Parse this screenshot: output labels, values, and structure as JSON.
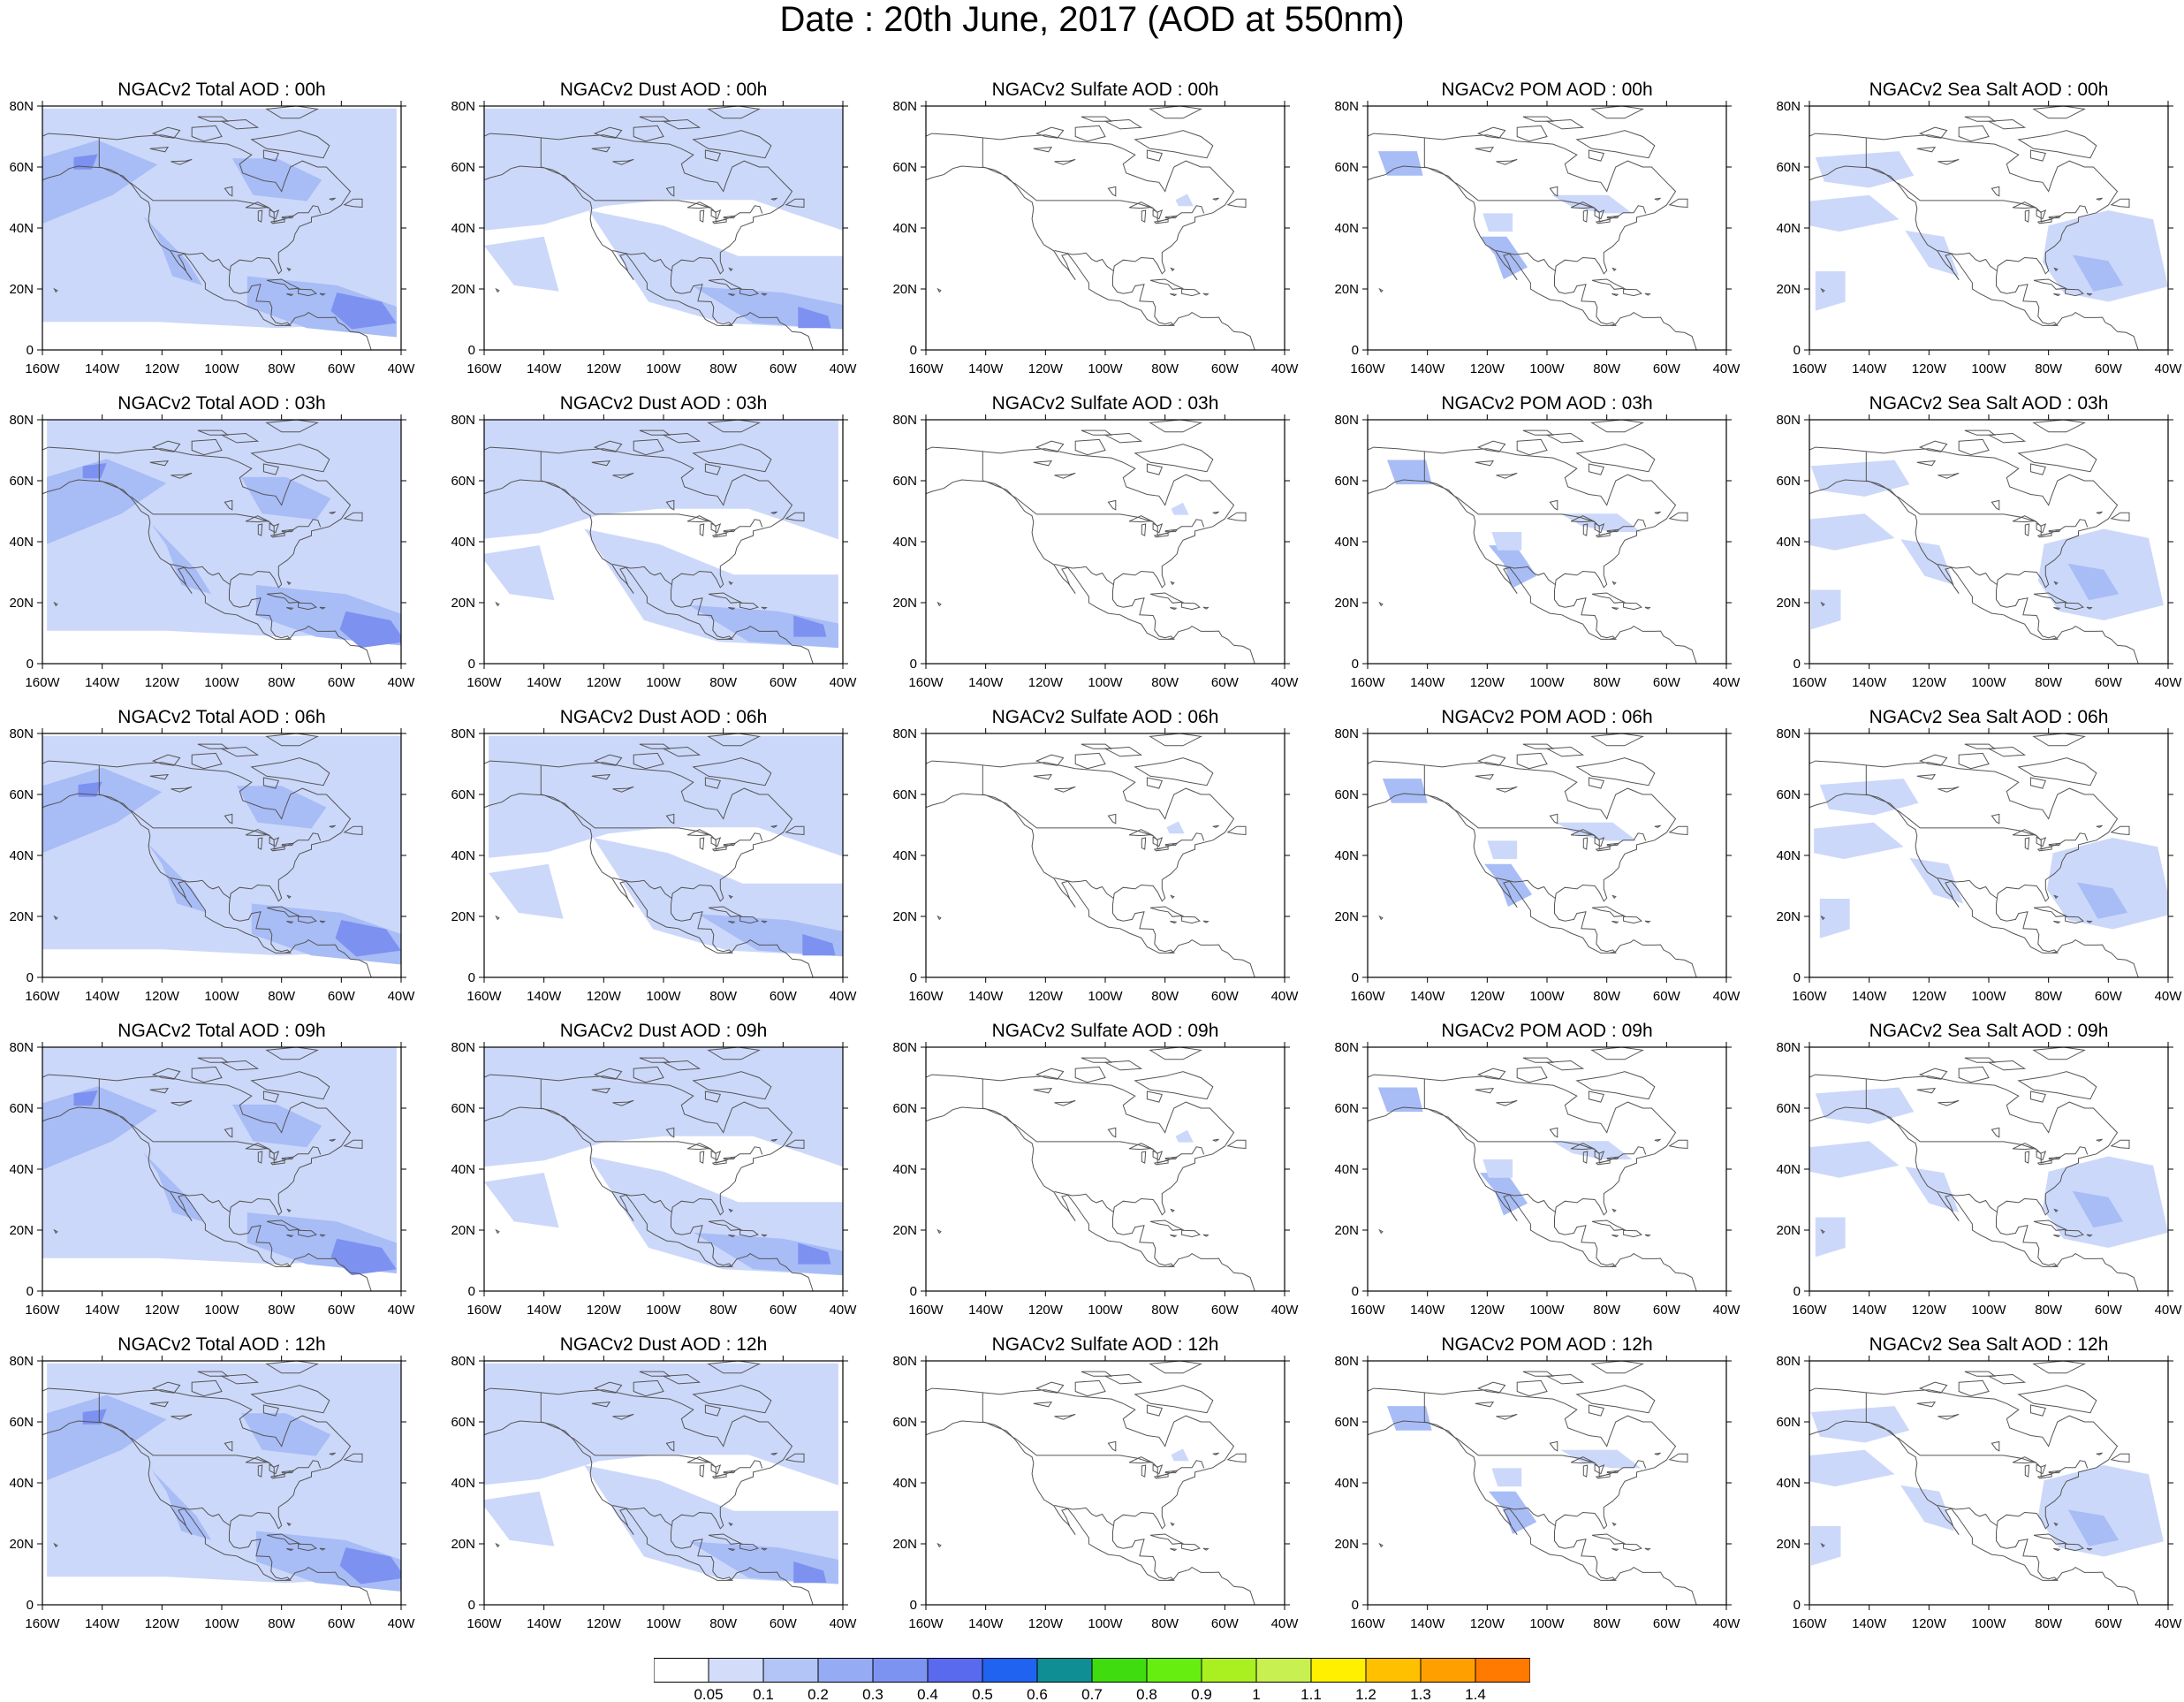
{
  "title": "Date : 20th June, 2017 (AOD at 550nm)",
  "panel_titles": [
    [
      "NGACv2 Total AOD : 00h",
      "NGACv2 Dust AOD : 00h",
      "NGACv2 Sulfate AOD : 00h",
      "NGACv2 POM AOD : 00h",
      "NGACv2 Sea Salt AOD : 00h"
    ],
    [
      "NGACv2 Total AOD : 03h",
      "NGACv2 Dust AOD : 03h",
      "NGACv2 Sulfate AOD : 03h",
      "NGACv2 POM AOD : 03h",
      "NGACv2 Sea Salt AOD : 03h"
    ],
    [
      "NGACv2 Total AOD : 06h",
      "NGACv2 Dust AOD : 06h",
      "NGACv2 Sulfate AOD : 06h",
      "NGACv2 POM AOD : 06h",
      "NGACv2 Sea Salt AOD : 06h"
    ],
    [
      "NGACv2 Total AOD : 09h",
      "NGACv2 Dust AOD : 09h",
      "NGACv2 Sulfate AOD : 09h",
      "NGACv2 POM AOD : 09h",
      "NGACv2 Sea Salt  AOD : 09h"
    ],
    [
      "NGACv2 Total AOD  : 12h",
      "NGACv2 Dust AOD : 12h",
      "NGACv2 Sulfate AOD : 12h",
      "NGACv2 POM  AOD : 12h",
      "NGACv2 Sea Salt  AOD : 12h"
    ]
  ],
  "lat_ticks": [
    "0",
    "20N",
    "40N",
    "60N",
    "80N"
  ],
  "lon_ticks": [
    "160W",
    "140W",
    "120W",
    "100W",
    "80W",
    "60W",
    "40W"
  ],
  "colorbar": {
    "labels": [
      "0.05",
      "0.1",
      "0.2",
      "0.3",
      "0.4",
      "0.5",
      "0.6",
      "0.7",
      "0.8",
      "0.9",
      "1",
      "1.1",
      "1.2",
      "1.3",
      "1.4"
    ],
    "colors": [
      "#ffffff",
      "#d3ddfa",
      "#b3c4f7",
      "#95acf5",
      "#7d93f2",
      "#5a6aee",
      "#1f63f0",
      "#0f8f94",
      "#3fdd10",
      "#66ee10",
      "#aaf020",
      "#c8f050",
      "#fff000",
      "#ffc000",
      "#ffa000",
      "#ff7a00",
      "#ff3000"
    ]
  },
  "colors": {
    "light_blue": "#ccd8fa",
    "mid_blue": "#a8bcf6",
    "deep_blue": "#7d91f0",
    "darker_blue": "#5c6fe8",
    "coast": "#555555"
  }
}
